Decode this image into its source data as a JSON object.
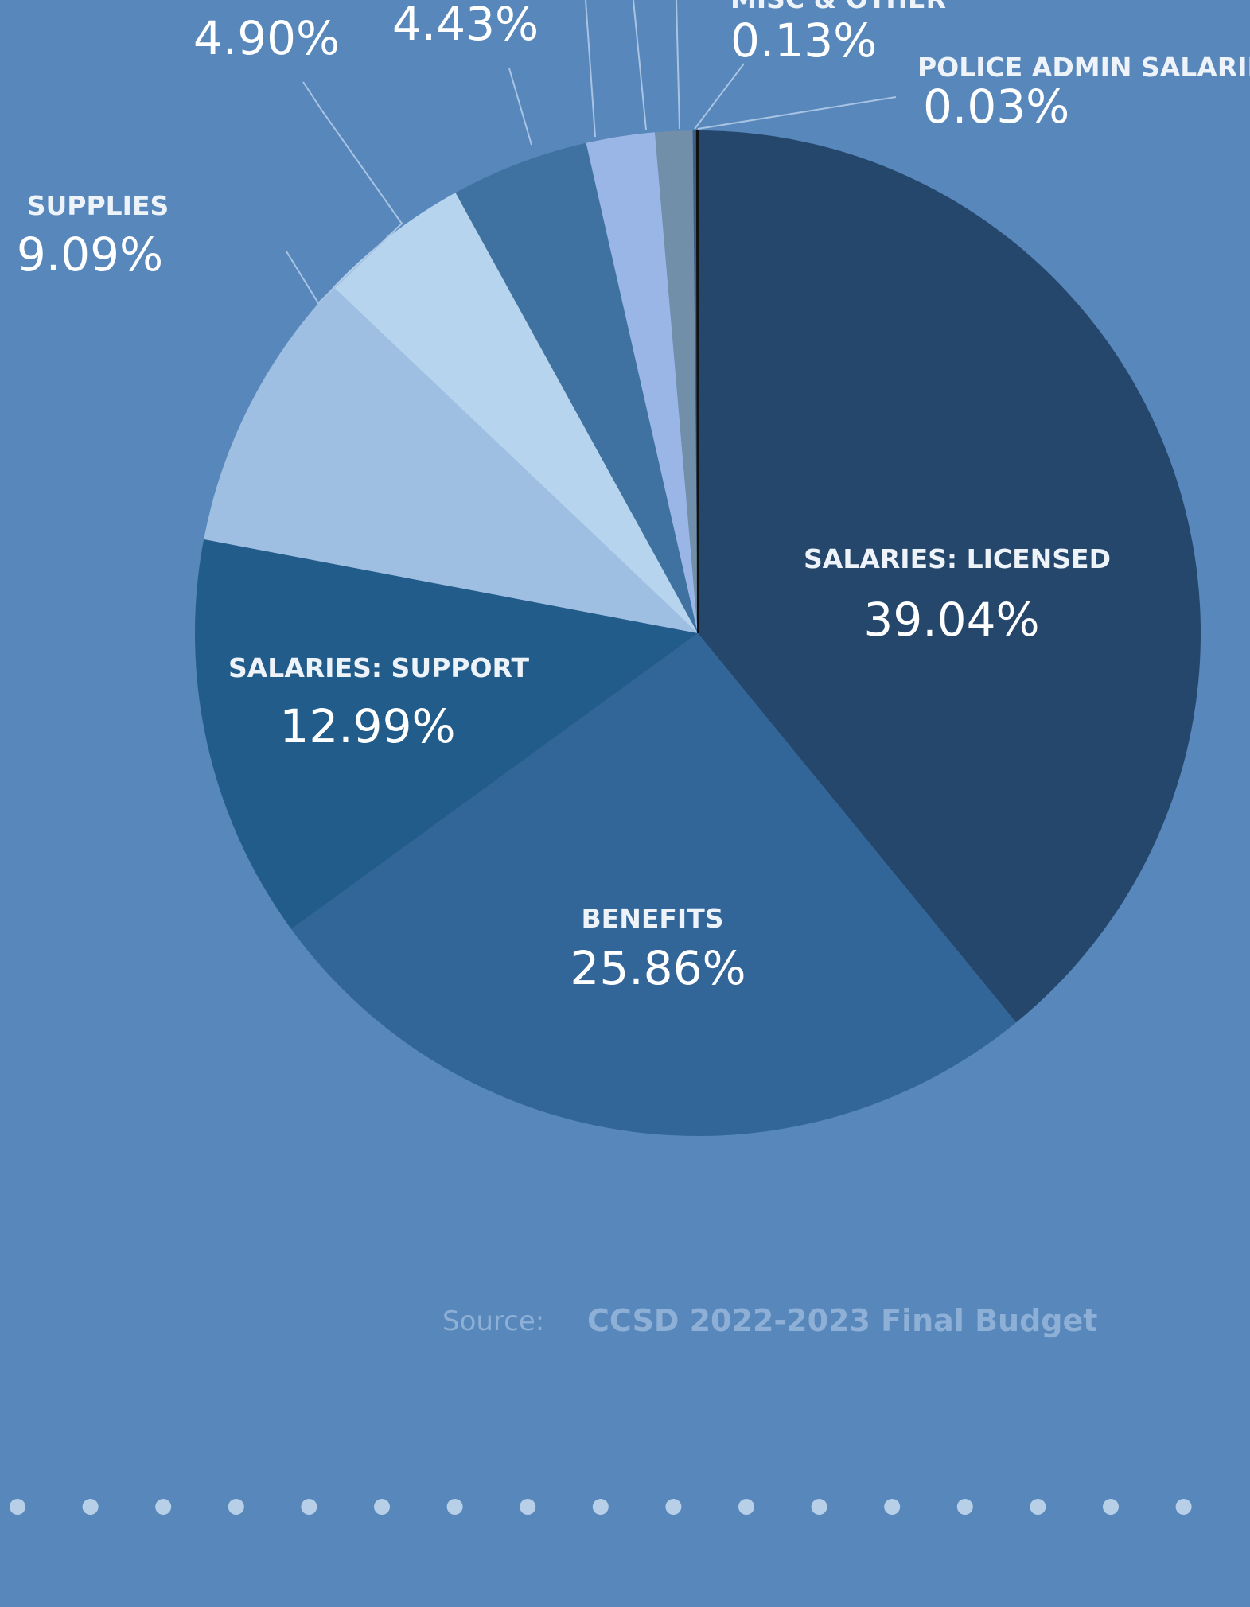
{
  "chart_data": {
    "type": "pie",
    "slices": [
      {
        "label": "SALARIES: LICENSED",
        "value": 39.04,
        "display": "39.04%",
        "color": "#24476b"
      },
      {
        "label": "BENEFITS",
        "value": 25.86,
        "display": "25.86%",
        "color": "#336698"
      },
      {
        "label": "SALARIES: SUPPORT",
        "value": 12.99,
        "display": "12.99%",
        "color": "#225c8a"
      },
      {
        "label": "SUPPLIES",
        "value": 9.09,
        "display": "9.09%",
        "color": "#9fbfe2"
      },
      {
        "label": "",
        "value": 4.9,
        "display": "4.90%",
        "color": "#b7d4ee"
      },
      {
        "label": "",
        "value": 4.43,
        "display": "4.43%",
        "color": "#3f72a0"
      },
      {
        "label": "",
        "value": 2.2,
        "display": "",
        "color": "#9ab6e6"
      },
      {
        "label": "",
        "value": 1.2,
        "display": "",
        "color": "#718fa9"
      },
      {
        "label": "MISC & OTHER",
        "value": 0.13,
        "display": "0.13%",
        "color": "#3e5f84"
      },
      {
        "label": "POLICE ADMIN SALARIES",
        "value": 0.03,
        "display": "0.03%",
        "color": "#ffffff"
      }
    ]
  },
  "source": {
    "label": "Source:",
    "value": "CCSD 2022-2023 Final Budget"
  },
  "colors": {
    "background": "#5787bb",
    "dots": "#b8cfe8"
  }
}
